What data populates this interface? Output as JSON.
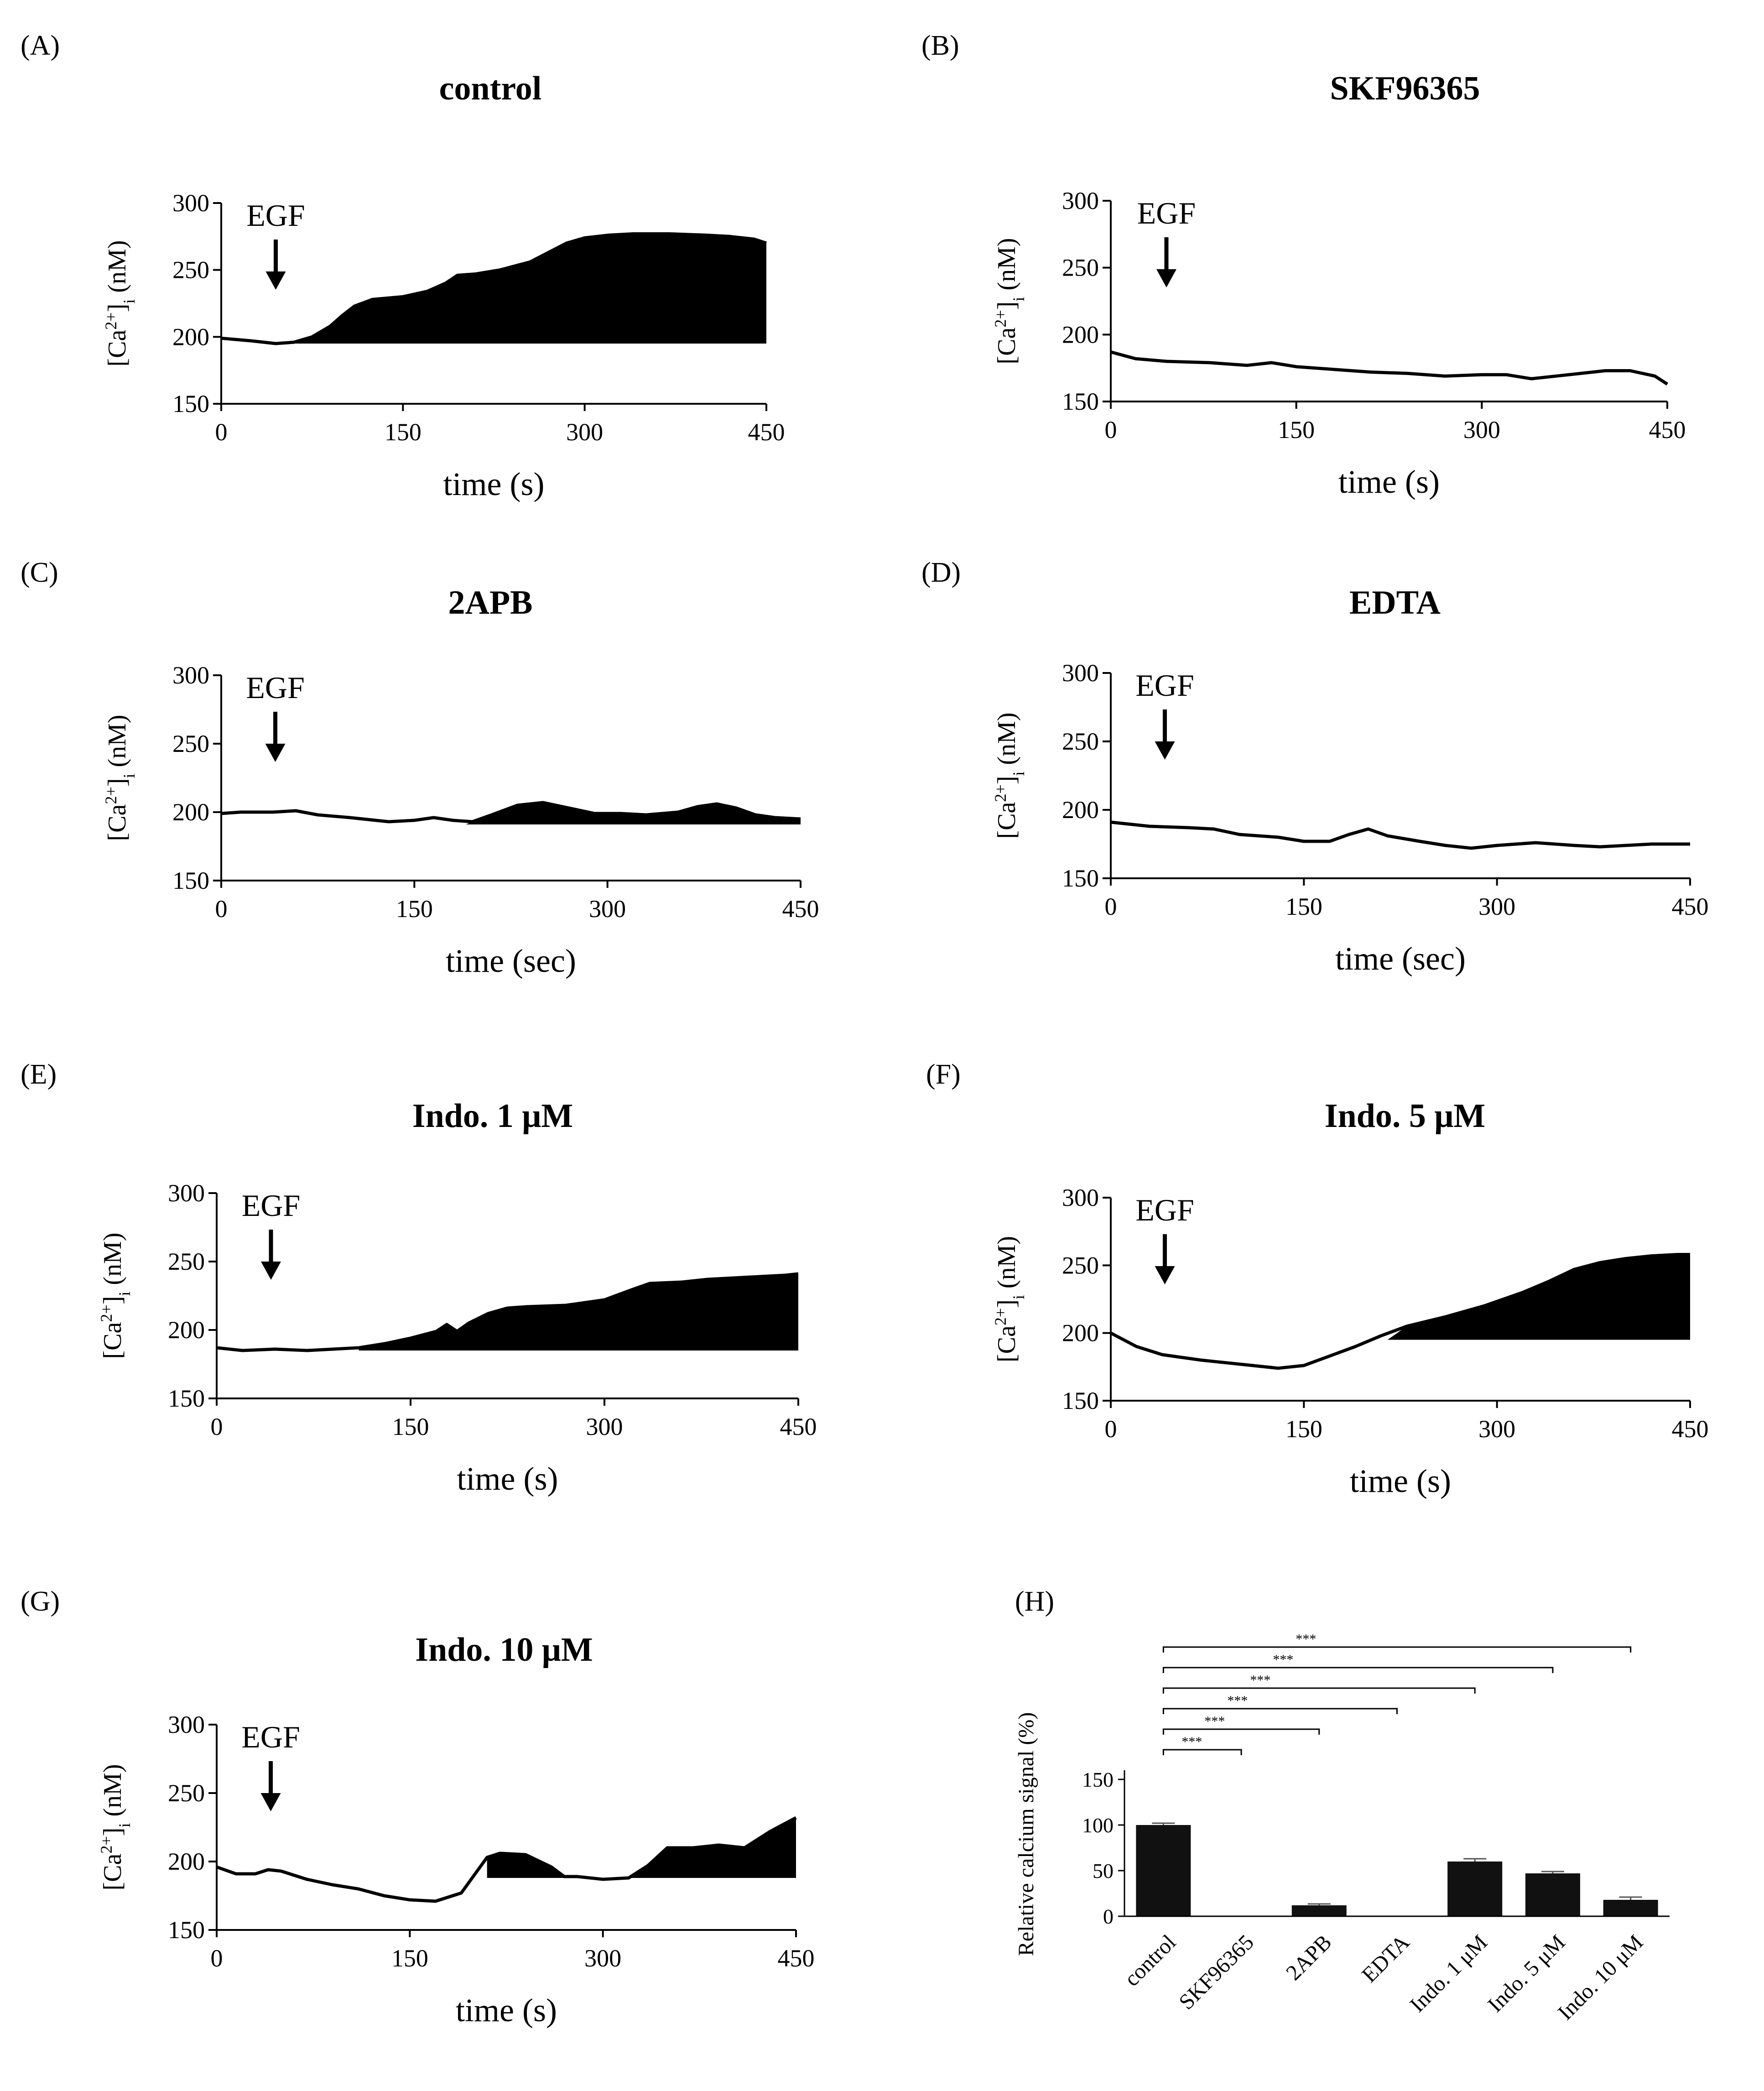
{
  "chart_data": [
    {
      "type": "area",
      "panel_label": "(A)",
      "title": "control",
      "xlabel": "time (s)",
      "ylabel": "[Ca2+]i (nM)",
      "xlim": [
        0,
        450
      ],
      "ylim": [
        150,
        300
      ],
      "xticks": [
        0,
        150,
        300,
        450
      ],
      "yticks": [
        150,
        200,
        250,
        300
      ],
      "annotation": "EGF",
      "egf_time": 45,
      "baseline": 195,
      "fill_from": 45,
      "x": [
        0,
        25,
        45,
        60,
        75,
        90,
        100,
        110,
        125,
        150,
        170,
        185,
        195,
        210,
        230,
        255,
        270,
        285,
        300,
        320,
        340,
        370,
        400,
        420,
        440,
        450
      ],
      "y": [
        199,
        197,
        195,
        196,
        200,
        208,
        216,
        223,
        228,
        230,
        234,
        240,
        246,
        247,
        250,
        256,
        263,
        270,
        274,
        276,
        277,
        277,
        276,
        275,
        273,
        270
      ]
    },
    {
      "type": "line",
      "panel_label": "(B)",
      "title": "SKF96365",
      "xlabel": "time (s)",
      "ylabel": "[Ca2+]i (nM)",
      "xlim": [
        0,
        450
      ],
      "ylim": [
        150,
        300
      ],
      "xticks": [
        0,
        150,
        300,
        450
      ],
      "yticks": [
        150,
        200,
        250,
        300
      ],
      "annotation": "EGF",
      "egf_time": 45,
      "x": [
        0,
        20,
        45,
        80,
        110,
        130,
        150,
        180,
        210,
        240,
        270,
        300,
        320,
        340,
        360,
        380,
        400,
        420,
        440,
        450
      ],
      "y": [
        187,
        182,
        180,
        179,
        177,
        179,
        176,
        174,
        172,
        171,
        169,
        170,
        170,
        167,
        169,
        171,
        173,
        173,
        169,
        163
      ]
    },
    {
      "type": "area",
      "panel_label": "(C)",
      "title": "2APB",
      "xlabel": "time (sec)",
      "ylabel": "[Ca2+]i (nM)",
      "xlim": [
        0,
        450
      ],
      "ylim": [
        150,
        300
      ],
      "xticks": [
        0,
        150,
        300,
        450
      ],
      "yticks": [
        150,
        200,
        250,
        300
      ],
      "annotation": "EGF",
      "egf_time": 42,
      "baseline": 191,
      "fill_from": 190,
      "x": [
        0,
        15,
        40,
        58,
        75,
        100,
        130,
        150,
        165,
        180,
        195,
        210,
        230,
        250,
        265,
        290,
        310,
        330,
        355,
        370,
        385,
        400,
        415,
        430,
        450
      ],
      "y": [
        199,
        200,
        200,
        201,
        198,
        196,
        193,
        194,
        196,
        194,
        193,
        198,
        205,
        207,
        204,
        199,
        199,
        198,
        200,
        204,
        206,
        203,
        198,
        196,
        195
      ]
    },
    {
      "type": "line",
      "panel_label": "(D)",
      "title": "EDTA",
      "xlabel": "time (sec)",
      "ylabel": "[Ca2+]i (nM)",
      "xlim": [
        0,
        450
      ],
      "ylim": [
        150,
        300
      ],
      "xticks": [
        0,
        150,
        300,
        450
      ],
      "yticks": [
        150,
        200,
        250,
        300
      ],
      "annotation": "EGF",
      "egf_time": 42,
      "x": [
        0,
        30,
        60,
        80,
        100,
        130,
        150,
        170,
        185,
        200,
        215,
        240,
        260,
        280,
        300,
        330,
        360,
        380,
        400,
        420,
        450
      ],
      "y": [
        191,
        188,
        187,
        186,
        182,
        180,
        177,
        177,
        182,
        186,
        181,
        177,
        174,
        172,
        174,
        176,
        174,
        173,
        174,
        175,
        175
      ]
    },
    {
      "type": "area",
      "panel_label": "(E)",
      "title": "Indo. 1 μM",
      "xlabel": "time (s)",
      "ylabel": "[Ca2+]i (nM)",
      "xlim": [
        0,
        450
      ],
      "ylim": [
        150,
        300
      ],
      "xticks": [
        0,
        150,
        300,
        450
      ],
      "yticks": [
        150,
        200,
        250,
        300
      ],
      "annotation": "EGF",
      "egf_time": 42,
      "baseline": 185,
      "fill_from": 110,
      "x": [
        0,
        20,
        45,
        70,
        90,
        110,
        130,
        150,
        170,
        178,
        186,
        195,
        210,
        225,
        240,
        270,
        300,
        320,
        335,
        360,
        380,
        400,
        420,
        440,
        450
      ],
      "y": [
        187,
        185,
        186,
        185,
        186,
        187,
        190,
        194,
        199,
        204,
        199,
        205,
        212,
        216,
        217,
        218,
        222,
        229,
        234,
        235,
        237,
        238,
        239,
        240,
        241
      ]
    },
    {
      "type": "area",
      "panel_label": "(F)",
      "title": "Indo. 5 μM",
      "xlabel": "time (s)",
      "ylabel": "[Ca2+]i (nM)",
      "xlim": [
        0,
        450
      ],
      "ylim": [
        150,
        300
      ],
      "xticks": [
        0,
        150,
        300,
        450
      ],
      "yticks": [
        150,
        200,
        250,
        300
      ],
      "annotation": "EGF",
      "egf_time": 42,
      "baseline": 195,
      "fill_from": 215,
      "x": [
        0,
        20,
        40,
        70,
        100,
        130,
        150,
        170,
        190,
        210,
        230,
        260,
        290,
        320,
        340,
        360,
        380,
        400,
        420,
        440,
        450
      ],
      "y": [
        200,
        190,
        184,
        180,
        177,
        174,
        176,
        183,
        190,
        198,
        205,
        212,
        220,
        230,
        238,
        247,
        252,
        255,
        257,
        258,
        258
      ]
    },
    {
      "type": "area",
      "panel_label": "(G)",
      "title": "Indo. 10 μM",
      "xlabel": "time (s)",
      "ylabel": "[Ca2+]i (nM)",
      "xlim": [
        0,
        450
      ],
      "ylim": [
        150,
        300
      ],
      "xticks": [
        0,
        150,
        300,
        450
      ],
      "yticks": [
        150,
        200,
        250,
        300
      ],
      "annotation": "EGF",
      "egf_time": 42,
      "baseline": 188,
      "fill_from": 210,
      "x": [
        0,
        15,
        30,
        40,
        50,
        70,
        90,
        110,
        130,
        150,
        170,
        190,
        200,
        210,
        220,
        240,
        260,
        270,
        280,
        300,
        320,
        335,
        350,
        370,
        390,
        410,
        430,
        450
      ],
      "y": [
        196,
        191,
        191,
        194,
        193,
        187,
        183,
        180,
        175,
        172,
        171,
        177,
        190,
        203,
        206,
        205,
        196,
        189,
        189,
        187,
        188,
        197,
        210,
        210,
        212,
        210,
        222,
        232
      ]
    },
    {
      "type": "bar",
      "panel_label": "(H)",
      "title": "",
      "ylabel": "Relative calcium signal (%)",
      "ylim": [
        0,
        150
      ],
      "yticks": [
        0,
        50,
        100,
        150
      ],
      "categories": [
        "control",
        "SKF96365",
        "2APB",
        "EDTA",
        "Indo. 1 μM",
        "Indo. 5 μM",
        "Indo. 10 μM"
      ],
      "values": [
        100,
        0,
        12,
        0,
        60,
        47,
        18
      ],
      "errors": [
        2,
        0,
        1.5,
        0,
        3,
        2,
        3
      ],
      "significance": [
        {
          "from": "control",
          "to": "SKF96365",
          "label": "***"
        },
        {
          "from": "control",
          "to": "2APB",
          "label": "***"
        },
        {
          "from": "control",
          "to": "EDTA",
          "label": "***"
        },
        {
          "from": "control",
          "to": "Indo. 1 μM",
          "label": "***"
        },
        {
          "from": "control",
          "to": "Indo. 5 μM",
          "label": "***"
        },
        {
          "from": "control",
          "to": "Indo. 10 μM",
          "label": "***"
        }
      ]
    }
  ],
  "colors": {
    "ink": "#000000",
    "fill": "#000000",
    "bar": "#111111",
    "background": "#ffffff"
  }
}
